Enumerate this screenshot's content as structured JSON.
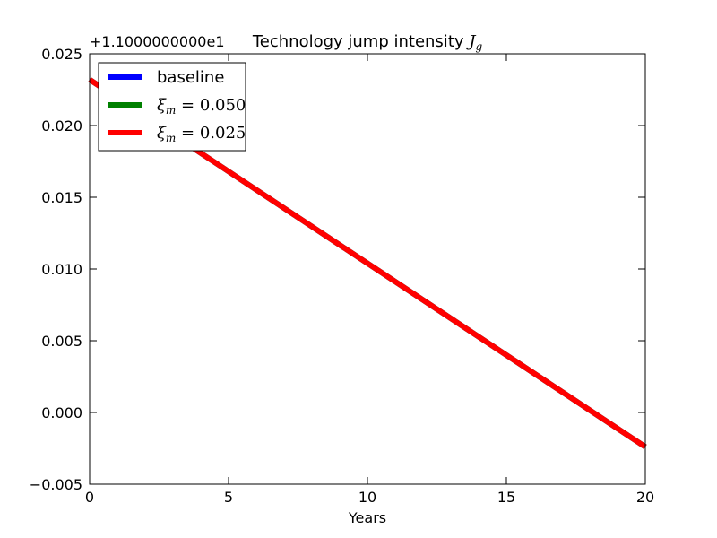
{
  "chart_data": {
    "type": "line",
    "title_prefix": "Technology jump intensity ",
    "title_math": "J",
    "title_math_sub": "g",
    "xlabel": "Years",
    "ylabel": "",
    "offset_label": "+1.1000000000e1",
    "xlim": [
      0,
      20
    ],
    "ylim": [
      -0.005,
      0.025
    ],
    "xticks": [
      0,
      5,
      10,
      15,
      20
    ],
    "xtick_labels": [
      "0",
      "5",
      "10",
      "15",
      "20"
    ],
    "yticks": [
      -0.005,
      0.0,
      0.005,
      0.01,
      0.015,
      0.02,
      0.025
    ],
    "ytick_labels": [
      "−0.005",
      "0.000",
      "0.005",
      "0.010",
      "0.015",
      "0.020",
      "0.025"
    ],
    "grid": false,
    "legend_position": "top-left",
    "series": [
      {
        "name": "baseline",
        "label_text": "baseline",
        "color": "#0000ff",
        "x": [
          0,
          20
        ],
        "y": [
          0.0232,
          -0.0024
        ]
      },
      {
        "name": "xi_m = 0.050",
        "label_base": "ξ",
        "label_sub": "m",
        "label_rest": " = 0.050",
        "color": "#008000",
        "x": [
          0,
          20
        ],
        "y": [
          0.0232,
          -0.0024
        ]
      },
      {
        "name": "xi_m = 0.025",
        "label_base": "ξ",
        "label_sub": "m",
        "label_rest": " = 0.025",
        "color": "#ff0000",
        "x": [
          0,
          20
        ],
        "y": [
          0.0232,
          -0.0024
        ]
      }
    ]
  }
}
